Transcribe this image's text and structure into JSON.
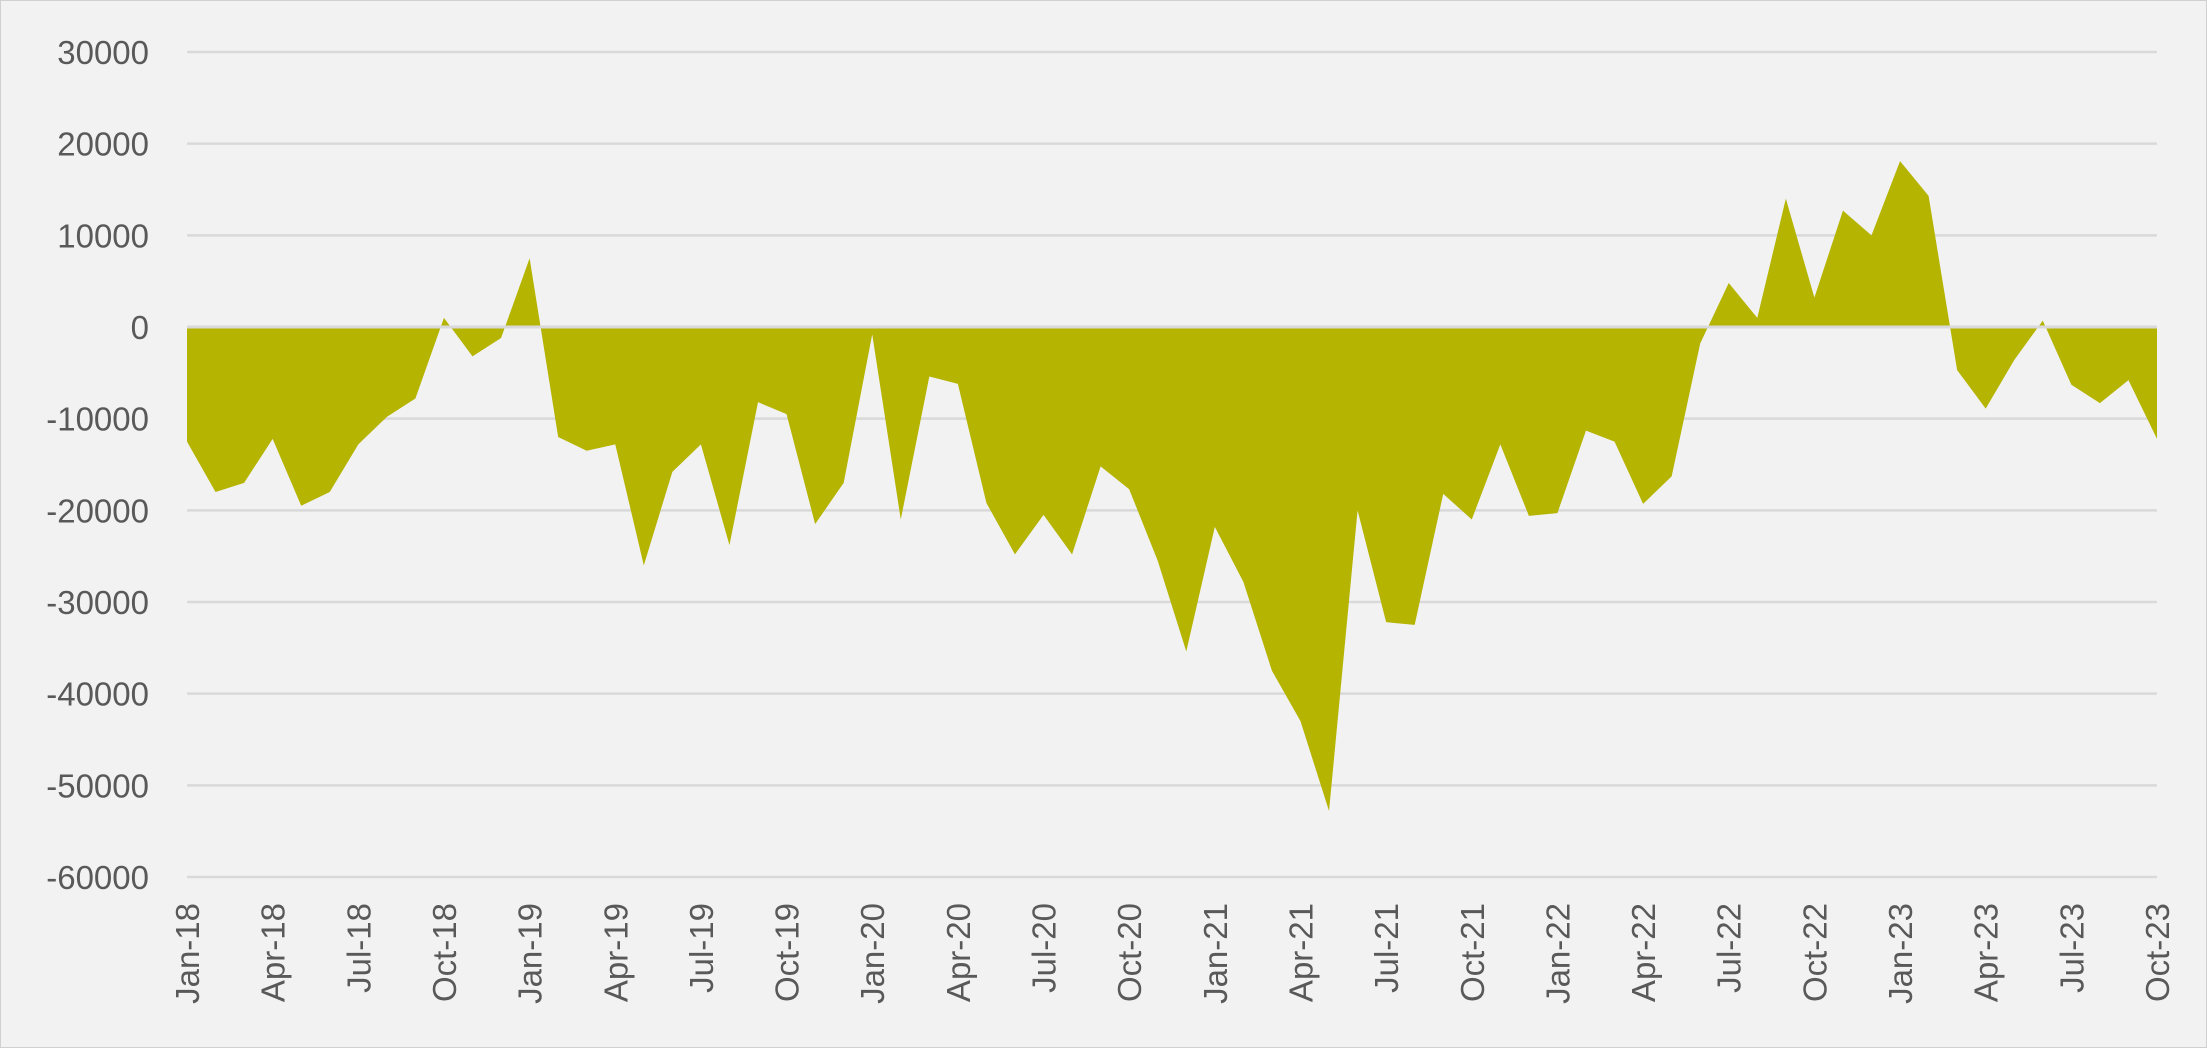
{
  "chart_data": {
    "type": "area",
    "title": "",
    "xlabel": "",
    "ylabel": "",
    "ylim": [
      -60000,
      30000
    ],
    "y_ticks": [
      30000,
      20000,
      10000,
      0,
      -10000,
      -20000,
      -30000,
      -40000,
      -50000,
      -60000
    ],
    "grid": true,
    "legend": "none",
    "fill_color": "#b5b400",
    "x_tick_labels": [
      "Jan-18",
      "Apr-18",
      "Jul-18",
      "Oct-18",
      "Jan-19",
      "Apr-19",
      "Jul-19",
      "Oct-19",
      "Jan-20",
      "Apr-20",
      "Jul-20",
      "Oct-20",
      "Jan-21",
      "Apr-21",
      "Jul-21",
      "Oct-21",
      "Jan-22",
      "Apr-22",
      "Jul-22",
      "Oct-22",
      "Jan-23",
      "Apr-23",
      "Jul-23",
      "Oct-23"
    ],
    "x": [
      "Jan-18",
      "Feb-18",
      "Mar-18",
      "Apr-18",
      "May-18",
      "Jun-18",
      "Jul-18",
      "Aug-18",
      "Sep-18",
      "Oct-18",
      "Nov-18",
      "Dec-18",
      "Jan-19",
      "Feb-19",
      "Mar-19",
      "Apr-19",
      "May-19",
      "Jun-19",
      "Jul-19",
      "Aug-19",
      "Sep-19",
      "Oct-19",
      "Nov-19",
      "Dec-19",
      "Jan-20",
      "Feb-20",
      "Mar-20",
      "Apr-20",
      "May-20",
      "Jun-20",
      "Jul-20",
      "Aug-20",
      "Sep-20",
      "Oct-20",
      "Nov-20",
      "Dec-20",
      "Jan-21",
      "Feb-21",
      "Mar-21",
      "Apr-21",
      "May-21",
      "Jun-21",
      "Jul-21",
      "Aug-21",
      "Sep-21",
      "Oct-21",
      "Nov-21",
      "Dec-21",
      "Jan-22",
      "Feb-22",
      "Mar-22",
      "Apr-22",
      "May-22",
      "Jun-22",
      "Jul-22",
      "Aug-22",
      "Sep-22",
      "Oct-22",
      "Nov-22",
      "Dec-22",
      "Jan-23",
      "Feb-23",
      "Mar-23",
      "Apr-23",
      "May-23",
      "Jun-23",
      "Jul-23",
      "Aug-23",
      "Sep-23",
      "Oct-23"
    ],
    "series": [
      {
        "values": [
          -12500,
          -18000,
          -17000,
          -12200,
          -19500,
          -18000,
          -12800,
          -9800,
          -7800,
          1000,
          -3200,
          -1200,
          7500,
          -12000,
          -13500,
          -12800,
          -26000,
          -15800,
          -12800,
          -23800,
          -8200,
          -9500,
          -21500,
          -17000,
          -800,
          -21000,
          -5400,
          -6200,
          -19200,
          -24800,
          -20500,
          -24800,
          -15200,
          -17700,
          -25500,
          -35400,
          -21800,
          -27800,
          -37500,
          -43000,
          -52800,
          -20000,
          -32200,
          -32500,
          -18200,
          -21000,
          -12800,
          -20600,
          -20300,
          -11300,
          -12500,
          -19300,
          -16300,
          -1800,
          4800,
          1000,
          14000,
          3200,
          12700,
          10000,
          18100,
          14300,
          -4700,
          -8900,
          -3600,
          700,
          -6300,
          -8300,
          -5800,
          -12200
        ]
      }
    ]
  }
}
